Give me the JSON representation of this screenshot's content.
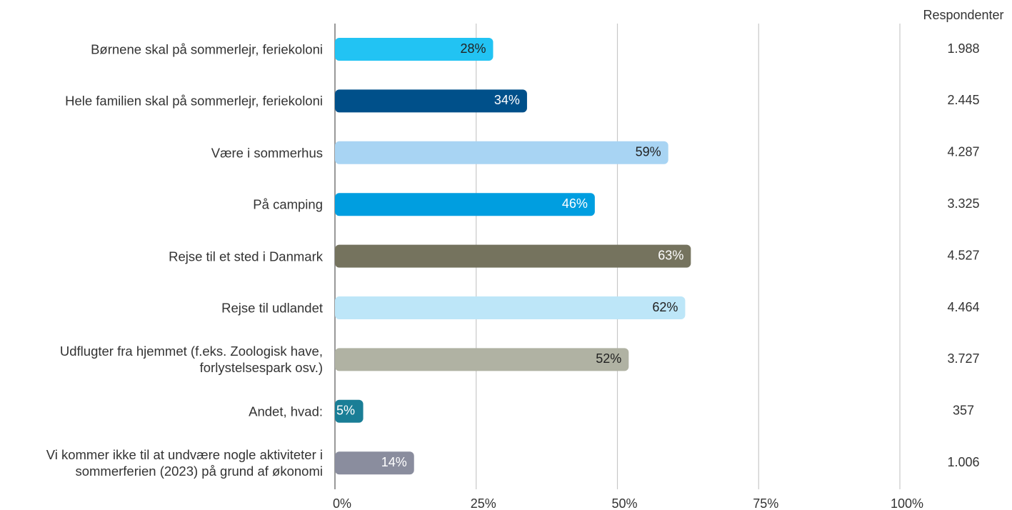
{
  "chart_data": {
    "type": "bar",
    "categories": [
      "Børnene skal på sommerlejr, feriekoloni",
      "Hele familien skal på sommerlejr, feriekoloni",
      "Være i sommerhus",
      "På camping",
      "Rejse til et sted i Danmark",
      "Rejse til udlandet",
      "Udflugter fra hjemmet (f.eks. Zoologisk have, forlystelsespark osv.)",
      "Andet, hvad:",
      "Vi kommer ikke til at undvære nogle aktiviteter i sommerferien (2023) på grund af økonomi"
    ],
    "values": [
      28,
      34,
      59,
      46,
      63,
      62,
      52,
      5,
      14
    ],
    "value_labels": [
      "28%",
      "34%",
      "59%",
      "46%",
      "63%",
      "62%",
      "52%",
      "5%",
      "14%"
    ],
    "colors": [
      "#22c3f3",
      "#00508a",
      "#a8d4f3",
      "#009ee0",
      "#75735e",
      "#bde6f8",
      "#b0b2a3",
      "#1a7e96",
      "#8a8d9e"
    ],
    "xlim": [
      0,
      100
    ],
    "xticks": [
      {
        "value": 0,
        "label": "0%"
      },
      {
        "value": 25,
        "label": "25%"
      },
      {
        "value": 50,
        "label": "50%"
      },
      {
        "value": 75,
        "label": "75%"
      },
      {
        "value": 100,
        "label": "100%"
      }
    ],
    "grid": true,
    "respondents": {
      "title": "Respondenter",
      "values": [
        1988,
        2445,
        4287,
        3325,
        4527,
        4464,
        3727,
        357,
        1006
      ],
      "value_labels": [
        "1.988",
        "2.445",
        "4.287",
        "3.325",
        "4.527",
        "4.464",
        "3.727",
        "357",
        "1.006"
      ]
    }
  }
}
